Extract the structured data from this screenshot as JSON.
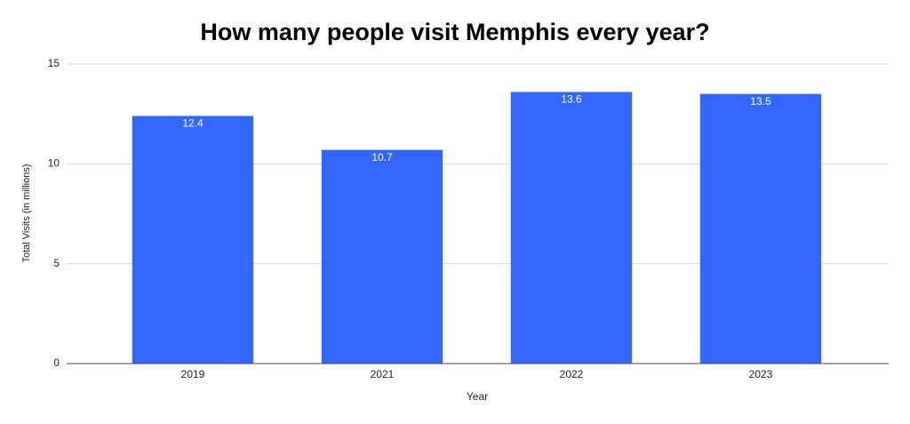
{
  "chart_data": {
    "type": "bar",
    "title": "How many people visit Memphis every year?",
    "x_label": "Year",
    "y_label": "Total Visits (in millions)",
    "categories": [
      "2019",
      "2021",
      "2022",
      "2023"
    ],
    "values": [
      12.4,
      10.7,
      13.6,
      13.5
    ],
    "color": "#3366ff",
    "ylim": [
      0,
      15
    ],
    "yticks": [
      0,
      5,
      10,
      15
    ],
    "grid": true
  }
}
